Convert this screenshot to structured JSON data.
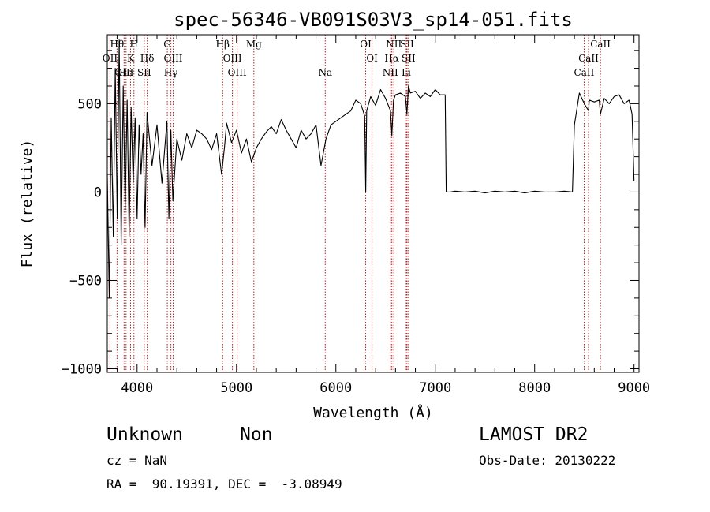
{
  "chart_data": {
    "type": "line",
    "title": "spec-56346-VB091S03V3_sp14-051.fits",
    "xlabel": "Wavelength (Å)",
    "ylabel": "Flux (relative)",
    "xlim": [
      3700,
      9050
    ],
    "ylim": [
      -1020,
      890
    ],
    "xticks": [
      {
        "value": 4000,
        "label": "4000"
      },
      {
        "value": 5000,
        "label": "5000"
      },
      {
        "value": 6000,
        "label": "6000"
      },
      {
        "value": 7000,
        "label": "7000"
      },
      {
        "value": 8000,
        "label": "8000"
      },
      {
        "value": 9000,
        "label": "9000"
      }
    ],
    "yticks": [
      {
        "value": 500,
        "label": "500"
      },
      {
        "value": 0,
        "label": "0"
      },
      {
        "value": -500,
        "label": "−500"
      },
      {
        "value": -1000,
        "label": "−1000"
      }
    ],
    "series": [
      {
        "name": "flux",
        "x": [
          3700,
          3720,
          3740,
          3760,
          3780,
          3800,
          3820,
          3840,
          3860,
          3880,
          3900,
          3920,
          3940,
          3960,
          3980,
          4000,
          4020,
          4040,
          4060,
          4080,
          4100,
          4150,
          4200,
          4250,
          4300,
          4320,
          4340,
          4360,
          4400,
          4450,
          4500,
          4550,
          4600,
          4650,
          4700,
          4750,
          4800,
          4850,
          4880,
          4900,
          4950,
          5000,
          5050,
          5100,
          5150,
          5200,
          5250,
          5300,
          5350,
          5400,
          5450,
          5500,
          5550,
          5600,
          5650,
          5700,
          5750,
          5800,
          5850,
          5900,
          5950,
          6000,
          6050,
          6100,
          6150,
          6200,
          6250,
          6290,
          6300,
          6310,
          6350,
          6400,
          6450,
          6500,
          6550,
          6563,
          6580,
          6600,
          6650,
          6700,
          6715,
          6730,
          6750,
          6800,
          6850,
          6900,
          6950,
          7000,
          7050,
          7100,
          7110,
          7150,
          7200,
          7300,
          7400,
          7500,
          7600,
          7700,
          7800,
          7900,
          8000,
          8100,
          8200,
          8300,
          8380,
          8390,
          8400,
          8420,
          8450,
          8500,
          8542,
          8550,
          8600,
          8650,
          8662,
          8700,
          8750,
          8800,
          8850,
          8900,
          8950,
          8980,
          9000
        ],
        "y": [
          100,
          -600,
          420,
          -250,
          700,
          -150,
          860,
          -300,
          600,
          -100,
          520,
          -250,
          480,
          50,
          420,
          -150,
          380,
          100,
          330,
          -200,
          450,
          150,
          380,
          50,
          400,
          -150,
          350,
          -50,
          300,
          180,
          330,
          250,
          350,
          330,
          300,
          240,
          330,
          100,
          260,
          390,
          280,
          350,
          220,
          300,
          170,
          250,
          300,
          340,
          370,
          330,
          410,
          350,
          300,
          250,
          350,
          300,
          330,
          380,
          150,
          300,
          380,
          400,
          420,
          440,
          460,
          520,
          500,
          430,
          0,
          460,
          540,
          490,
          580,
          530,
          460,
          320,
          520,
          550,
          560,
          540,
          440,
          600,
          560,
          570,
          530,
          560,
          540,
          580,
          550,
          550,
          0,
          0,
          5,
          0,
          5,
          -5,
          5,
          0,
          5,
          -5,
          5,
          0,
          0,
          5,
          0,
          200,
          380,
          450,
          560,
          500,
          460,
          520,
          510,
          520,
          440,
          530,
          500,
          540,
          550,
          500,
          520,
          440,
          60
        ]
      }
    ],
    "lines": [
      {
        "name": "Hθ",
        "wave": 3798,
        "row": 0
      },
      {
        "name": "H",
        "wave": 3968,
        "row": 0
      },
      {
        "name": "G",
        "wave": 4304,
        "row": 0
      },
      {
        "name": "Hβ",
        "wave": 4861,
        "row": 0
      },
      {
        "name": "Mg",
        "wave": 5175,
        "row": 0
      },
      {
        "name": "OI",
        "wave": 6300,
        "row": 0
      },
      {
        "name": "NII",
        "wave": 6583,
        "row": 0
      },
      {
        "name": "SII",
        "wave": 6716,
        "row": 0
      },
      {
        "name": "CaII",
        "wave": 8662,
        "row": 0
      },
      {
        "name": "OII",
        "wave": 3727,
        "row": 1
      },
      {
        "name": "K",
        "wave": 3934,
        "row": 1
      },
      {
        "name": "Hδ",
        "wave": 4102,
        "row": 1
      },
      {
        "name": "OIII",
        "wave": 4363,
        "row": 1
      },
      {
        "name": "OIII",
        "wave": 4959,
        "row": 1
      },
      {
        "name": "OI",
        "wave": 6364,
        "row": 1
      },
      {
        "name": "Hα",
        "wave": 6563,
        "row": 1
      },
      {
        "name": "SII",
        "wave": 6731,
        "row": 1
      },
      {
        "name": "CaII",
        "wave": 8542,
        "row": 1
      },
      {
        "name": "OIII",
        "wave": 3869,
        "row": 2
      },
      {
        "name": "He",
        "wave": 3889,
        "row": 2
      },
      {
        "name": "SII",
        "wave": 4072,
        "row": 2
      },
      {
        "name": "Hγ",
        "wave": 4340,
        "row": 2
      },
      {
        "name": "OIII",
        "wave": 5007,
        "row": 2
      },
      {
        "name": "Na",
        "wave": 5893,
        "row": 2
      },
      {
        "name": "NII",
        "wave": 6548,
        "row": 2
      },
      {
        "name": "Li",
        "wave": 6708,
        "row": 2
      },
      {
        "name": "CaII",
        "wave": 8498,
        "row": 2
      }
    ]
  },
  "info": {
    "class_label": "Unknown",
    "subclass_label": "Non",
    "cz_text": "cz = NaN",
    "radec_text": "RA =  90.19391, DEC =  -3.08949",
    "survey_text": "LAMOST DR2",
    "obsdate_text": "Obs-Date: 20130222"
  }
}
